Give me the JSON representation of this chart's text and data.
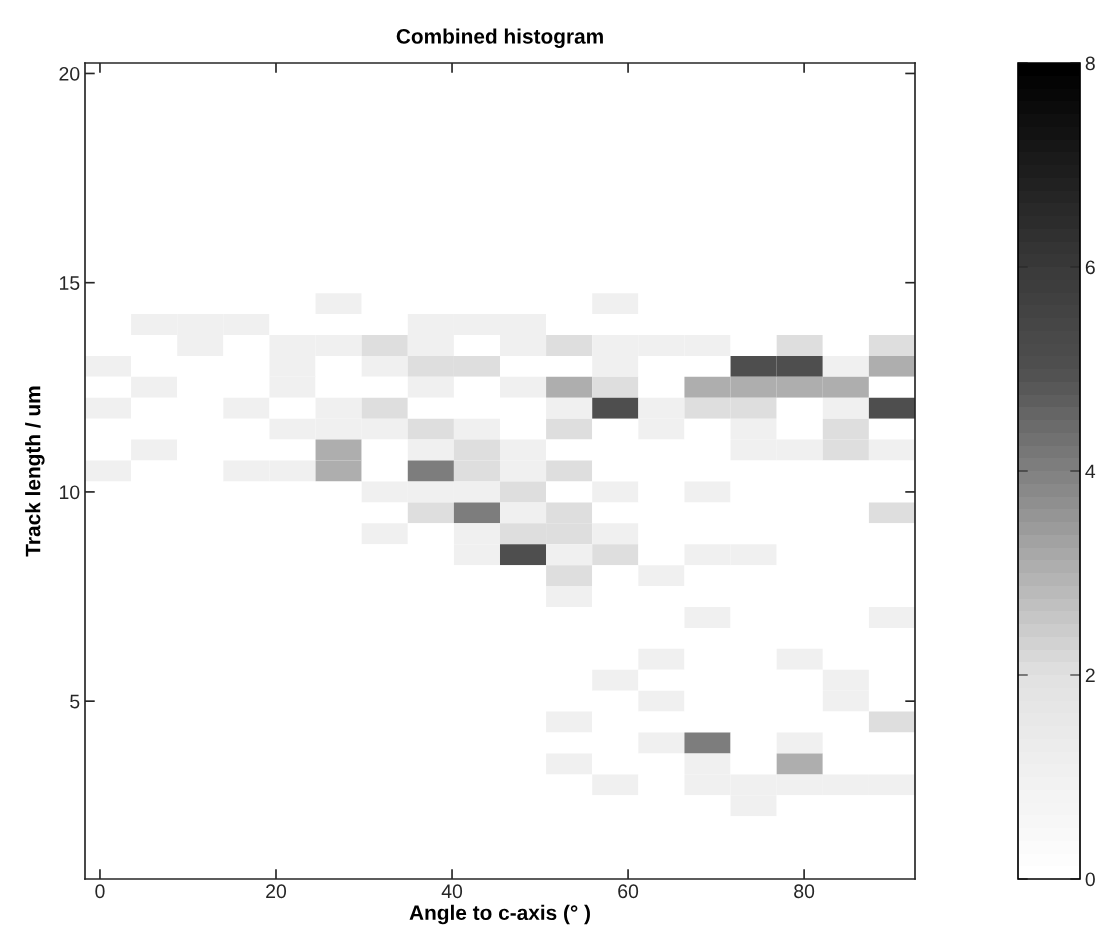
{
  "chart_data": {
    "type": "heatmap",
    "title": "Combined histogram",
    "xlabel": "Angle to c-axis (° )",
    "ylabel": "Track length / um",
    "xlim": [
      -1.7,
      92.6
    ],
    "xticks": [
      0,
      20,
      40,
      60,
      80
    ],
    "ylim": [
      0.75,
      20.25
    ],
    "yticks": [
      5,
      10,
      15,
      20
    ],
    "clim": [
      0,
      8
    ],
    "cticks": [
      0,
      2,
      4,
      6,
      8
    ],
    "grid": false,
    "cells": [
      [
        0,
        0,
        0,
        0,
        0,
        0,
        0,
        0,
        0,
        0,
        0,
        0,
        0,
        0,
        0,
        0,
        0,
        0
      ],
      [
        0,
        0,
        0,
        0,
        0,
        0,
        0,
        0,
        0,
        0,
        0,
        0,
        0,
        0,
        0,
        0,
        0,
        0
      ],
      [
        0,
        0,
        0,
        0,
        0,
        0,
        0,
        0,
        0,
        0,
        0,
        0,
        0,
        0,
        0,
        0,
        0,
        0
      ],
      [
        0,
        0,
        0,
        0,
        0,
        0,
        0,
        0,
        0,
        0,
        0,
        0,
        0,
        0,
        0,
        0,
        0,
        0
      ],
      [
        0,
        0,
        0,
        0,
        0,
        0,
        0,
        0,
        0,
        0,
        0,
        0,
        0,
        0,
        0,
        0,
        0,
        0
      ],
      [
        0,
        0,
        0,
        0,
        0,
        0,
        0,
        0,
        0,
        0,
        0,
        0,
        0,
        0,
        0,
        0,
        0,
        0
      ],
      [
        0,
        0,
        0,
        0,
        0,
        0,
        0,
        0,
        0,
        0,
        0,
        0,
        0,
        0,
        0,
        0,
        0,
        0
      ],
      [
        0,
        0,
        0,
        0,
        0,
        0,
        0,
        0,
        0,
        0,
        0,
        0,
        0,
        0,
        0,
        0,
        0,
        0
      ],
      [
        0,
        0,
        0,
        0,
        0,
        0,
        0,
        0,
        0,
        0,
        0,
        0,
        0,
        0,
        0,
        0,
        0,
        0
      ],
      [
        0,
        0,
        0,
        0,
        0,
        0,
        0,
        0,
        0,
        0,
        0,
        0,
        0,
        0,
        0,
        0,
        0,
        0
      ],
      [
        0,
        0,
        0,
        0,
        0,
        0,
        0,
        0,
        0,
        0,
        0,
        0,
        0,
        0,
        0,
        0,
        0,
        0
      ],
      [
        0,
        0,
        0,
        0,
        0,
        1,
        0,
        0,
        0,
        0,
        0,
        1,
        0,
        0,
        0,
        0,
        0,
        0
      ],
      [
        0,
        1,
        1,
        1,
        0,
        0,
        0,
        1,
        1,
        1,
        0,
        0,
        0,
        0,
        0,
        0,
        0,
        0
      ],
      [
        0,
        0,
        1,
        0,
        1,
        1,
        2,
        1,
        0,
        1,
        2,
        1,
        1,
        1,
        0,
        2,
        0,
        2
      ],
      [
        1,
        0,
        0,
        0,
        1,
        0,
        1,
        2,
        2,
        0,
        0,
        1,
        0,
        0,
        5,
        5,
        1,
        3
      ],
      [
        0,
        1,
        0,
        0,
        1,
        0,
        0,
        1,
        0,
        1,
        3,
        2,
        0,
        3,
        3,
        3,
        3,
        0
      ],
      [
        1,
        0,
        0,
        1,
        0,
        1,
        2,
        0,
        0,
        0,
        1,
        5,
        1,
        2,
        2,
        0,
        1,
        5
      ],
      [
        0,
        0,
        0,
        0,
        1,
        1,
        1,
        2,
        1,
        0,
        2,
        0,
        1,
        0,
        1,
        0,
        2,
        0
      ],
      [
        0,
        1,
        0,
        0,
        0,
        3,
        0,
        1,
        2,
        1,
        0,
        0,
        0,
        0,
        1,
        1,
        2,
        1
      ],
      [
        1,
        0,
        0,
        1,
        1,
        3,
        0,
        4,
        2,
        1,
        2,
        0,
        0,
        0,
        0,
        0,
        0,
        0
      ],
      [
        0,
        0,
        0,
        0,
        0,
        0,
        1,
        1,
        1,
        2,
        0,
        1,
        0,
        1,
        0,
        0,
        0,
        0
      ],
      [
        0,
        0,
        0,
        0,
        0,
        0,
        0,
        2,
        4,
        1,
        2,
        0,
        0,
        0,
        0,
        0,
        0,
        2
      ],
      [
        0,
        0,
        0,
        0,
        0,
        0,
        1,
        0,
        1,
        2,
        2,
        1,
        0,
        0,
        0,
        0,
        0,
        0
      ],
      [
        0,
        0,
        0,
        0,
        0,
        0,
        0,
        0,
        1,
        5,
        1,
        2,
        0,
        1,
        1,
        0,
        0,
        0
      ],
      [
        0,
        0,
        0,
        0,
        0,
        0,
        0,
        0,
        0,
        0,
        2,
        0,
        1,
        0,
        0,
        0,
        0,
        0
      ],
      [
        0,
        0,
        0,
        0,
        0,
        0,
        0,
        0,
        0,
        0,
        1,
        0,
        0,
        0,
        0,
        0,
        0,
        0
      ],
      [
        0,
        0,
        0,
        0,
        0,
        0,
        0,
        0,
        0,
        0,
        0,
        0,
        0,
        1,
        0,
        0,
        0,
        1
      ],
      [
        0,
        0,
        0,
        0,
        0,
        0,
        0,
        0,
        0,
        0,
        0,
        0,
        0,
        0,
        0,
        0,
        0,
        0
      ],
      [
        0,
        0,
        0,
        0,
        0,
        0,
        0,
        0,
        0,
        0,
        0,
        0,
        1,
        0,
        0,
        1,
        0,
        0
      ],
      [
        0,
        0,
        0,
        0,
        0,
        0,
        0,
        0,
        0,
        0,
        0,
        1,
        0,
        0,
        0,
        0,
        1,
        0
      ],
      [
        0,
        0,
        0,
        0,
        0,
        0,
        0,
        0,
        0,
        0,
        0,
        0,
        1,
        0,
        0,
        0,
        1,
        0
      ],
      [
        0,
        0,
        0,
        0,
        0,
        0,
        0,
        0,
        0,
        0,
        1,
        0,
        0,
        0,
        0,
        0,
        0,
        2
      ],
      [
        0,
        0,
        0,
        0,
        0,
        0,
        0,
        0,
        0,
        0,
        0,
        0,
        1,
        4,
        0,
        1,
        0,
        0
      ],
      [
        0,
        0,
        0,
        0,
        0,
        0,
        0,
        0,
        0,
        0,
        1,
        0,
        0,
        1,
        0,
        3,
        0,
        0
      ],
      [
        0,
        0,
        0,
        0,
        0,
        0,
        0,
        0,
        0,
        0,
        0,
        1,
        0,
        1,
        1,
        1,
        1,
        1
      ],
      [
        0,
        0,
        0,
        0,
        0,
        0,
        0,
        0,
        0,
        0,
        0,
        0,
        0,
        0,
        1,
        0,
        0,
        0
      ],
      [
        0,
        0,
        0,
        0,
        0,
        0,
        0,
        0,
        0,
        0,
        0,
        0,
        0,
        0,
        0,
        0,
        0,
        0
      ],
      [
        0,
        0,
        0,
        0,
        0,
        0,
        0,
        0,
        0,
        0,
        0,
        0,
        0,
        0,
        0,
        0,
        0,
        0
      ],
      [
        0,
        0,
        0,
        0,
        0,
        0,
        0,
        0,
        0,
        0,
        0,
        0,
        0,
        0,
        0,
        0,
        0,
        0
      ]
    ]
  }
}
